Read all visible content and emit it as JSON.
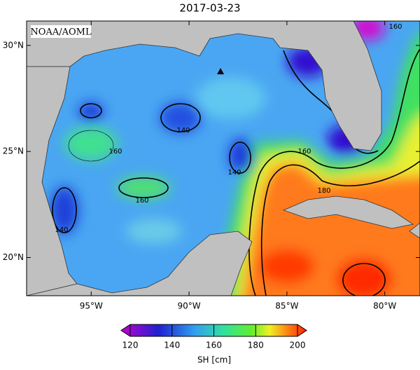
{
  "title": "2017-03-23",
  "source_label": "NOAA/AOML",
  "map": {
    "xlim": [
      -98.3,
      -78.2
    ],
    "ylim": [
      18.2,
      31.15
    ],
    "xticks": [
      {
        "value": -95,
        "label": "95°W"
      },
      {
        "value": -90,
        "label": "90°W"
      },
      {
        "value": -85,
        "label": "85°W"
      },
      {
        "value": -80,
        "label": "80°W"
      }
    ],
    "yticks": [
      {
        "value": 20,
        "label": "20°N"
      },
      {
        "value": 25,
        "label": "25°N"
      },
      {
        "value": 30,
        "label": "30°N"
      }
    ],
    "contour_labels": [
      140,
      160,
      140,
      160,
      140,
      160,
      180,
      160
    ]
  },
  "colorbar": {
    "label": "SH [cm]",
    "range": [
      120,
      200
    ],
    "ticks": [
      120,
      140,
      160,
      180,
      200
    ]
  }
}
